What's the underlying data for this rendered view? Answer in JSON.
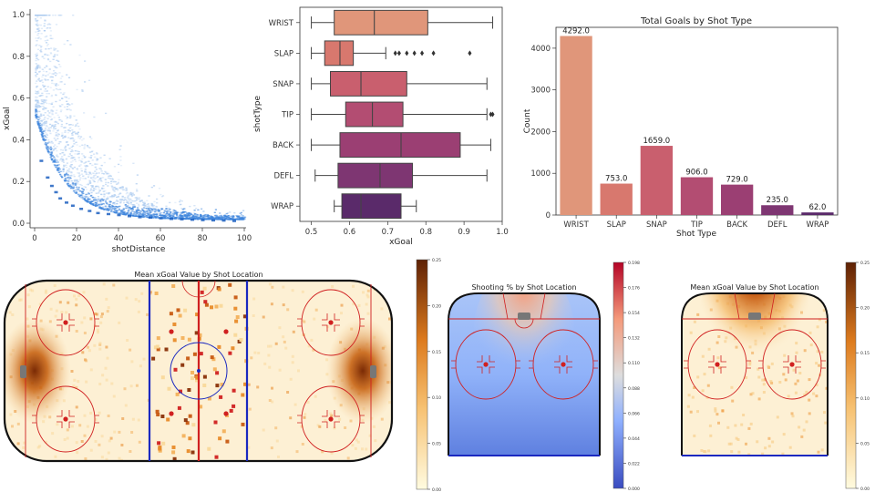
{
  "scatter_panel": {
    "xlabel": "shotDistance",
    "ylabel": "xGoal",
    "x_ticks": [
      "0",
      "20",
      "40",
      "60",
      "80",
      "100"
    ],
    "y_ticks": [
      "0.0",
      "0.2",
      "0.4",
      "0.6",
      "0.8",
      "1.0"
    ]
  },
  "box_panel": {
    "xlabel": "xGoal",
    "ylabel": "shotType",
    "x_ticks": [
      "0.5",
      "0.6",
      "0.7",
      "0.8",
      "0.9",
      "1.0"
    ]
  },
  "bar_panel": {
    "title": "Total Goals by Shot Type",
    "xlabel": "Shot Type",
    "ylabel": "Count",
    "y_ticks": [
      "0",
      "1000",
      "2000",
      "3000",
      "4000"
    ]
  },
  "rink_full": {
    "title": "Mean xGoal Value by Shot Location",
    "colorbar_ticks": [
      "0.00",
      "0.05",
      "0.10",
      "0.15",
      "0.20",
      "0.25"
    ]
  },
  "rink_shooting_pct": {
    "title": "Shooting % by Shot Location",
    "colorbar_ticks": [
      "0.000",
      "0.022",
      "0.044",
      "0.066",
      "0.088",
      "0.110",
      "0.132",
      "0.154",
      "0.176",
      "0.198"
    ]
  },
  "rink_half": {
    "title": "Mean xGoal Value by Shot Location",
    "colorbar_ticks": [
      "0.00",
      "0.05",
      "0.10",
      "0.15",
      "0.20",
      "0.25"
    ]
  },
  "colors": {
    "wrist": "#e0967a",
    "slap": "#d8786e",
    "snap": "#c95f6e",
    "tip": "#b34d72",
    "back": "#9b3f73",
    "defl": "#7e3672",
    "wrap": "#5a2a6a",
    "rink_line_red": "#d02020",
    "rink_line_blue": "#1a28c0",
    "hist_blue": "#2e7bd8"
  },
  "chart_data": [
    {
      "type": "scatter",
      "xlabel": "shotDistance",
      "ylabel": "xGoal",
      "xlim": [
        0,
        100
      ],
      "ylim": [
        0,
        1
      ],
      "x": [
        3,
        6,
        8,
        10,
        12,
        15,
        18,
        22,
        26,
        30,
        35,
        40,
        45,
        50,
        55,
        60,
        65,
        70,
        75,
        80,
        85,
        90,
        95
      ],
      "y": [
        0.3,
        0.22,
        0.18,
        0.15,
        0.12,
        0.1,
        0.085,
        0.07,
        0.06,
        0.05,
        0.045,
        0.04,
        0.035,
        0.03,
        0.028,
        0.025,
        0.022,
        0.02,
        0.018,
        0.016,
        0.015,
        0.014,
        0.012
      ]
    },
    {
      "type": "box",
      "xlabel": "xGoal",
      "ylabel": "shotType",
      "xlim": [
        0.47,
        1.0
      ],
      "categories": [
        "WRIST",
        "SLAP",
        "SNAP",
        "TIP",
        "BACK",
        "DEFL",
        "WRAP"
      ],
      "boxes": [
        {
          "min": 0.5,
          "q1": 0.56,
          "median": 0.665,
          "q3": 0.805,
          "max": 0.975,
          "outliers": []
        },
        {
          "min": 0.5,
          "q1": 0.535,
          "median": 0.575,
          "q3": 0.61,
          "max": 0.695,
          "outliers": [
            0.72,
            0.73,
            0.75,
            0.77,
            0.79,
            0.82,
            0.915
          ]
        },
        {
          "min": 0.5,
          "q1": 0.55,
          "median": 0.63,
          "q3": 0.75,
          "max": 0.96,
          "outliers": []
        },
        {
          "min": 0.5,
          "q1": 0.59,
          "median": 0.66,
          "q3": 0.74,
          "max": 0.96,
          "outliers": [
            0.97,
            0.975
          ]
        },
        {
          "min": 0.5,
          "q1": 0.575,
          "median": 0.735,
          "q3": 0.89,
          "max": 0.97,
          "outliers": []
        },
        {
          "min": 0.51,
          "q1": 0.57,
          "median": 0.68,
          "q3": 0.765,
          "max": 0.96,
          "outliers": []
        },
        {
          "min": 0.56,
          "q1": 0.58,
          "median": 0.63,
          "q3": 0.735,
          "max": 0.775,
          "outliers": []
        }
      ]
    },
    {
      "type": "bar",
      "title": "Total Goals by Shot Type",
      "xlabel": "Shot Type",
      "ylabel": "Count",
      "ylim": [
        0,
        4500
      ],
      "categories": [
        "WRIST",
        "SLAP",
        "SNAP",
        "TIP",
        "BACK",
        "DEFL",
        "WRAP"
      ],
      "values": [
        4292.0,
        753.0,
        1659.0,
        906.0,
        729.0,
        235.0,
        62.0
      ],
      "value_labels": [
        "4292.0",
        "753.0",
        "1659.0",
        "906.0",
        "729.0",
        "235.0",
        "62.0"
      ]
    },
    {
      "type": "heatmap",
      "title": "Mean xGoal Value by Shot Location",
      "colorbar_range": [
        0,
        0.25
      ]
    },
    {
      "type": "heatmap",
      "title": "Shooting % by Shot Location",
      "colorbar_range": [
        0,
        0.198
      ]
    },
    {
      "type": "heatmap",
      "title": "Mean xGoal Value by Shot Location",
      "colorbar_range": [
        0,
        0.25
      ]
    }
  ]
}
